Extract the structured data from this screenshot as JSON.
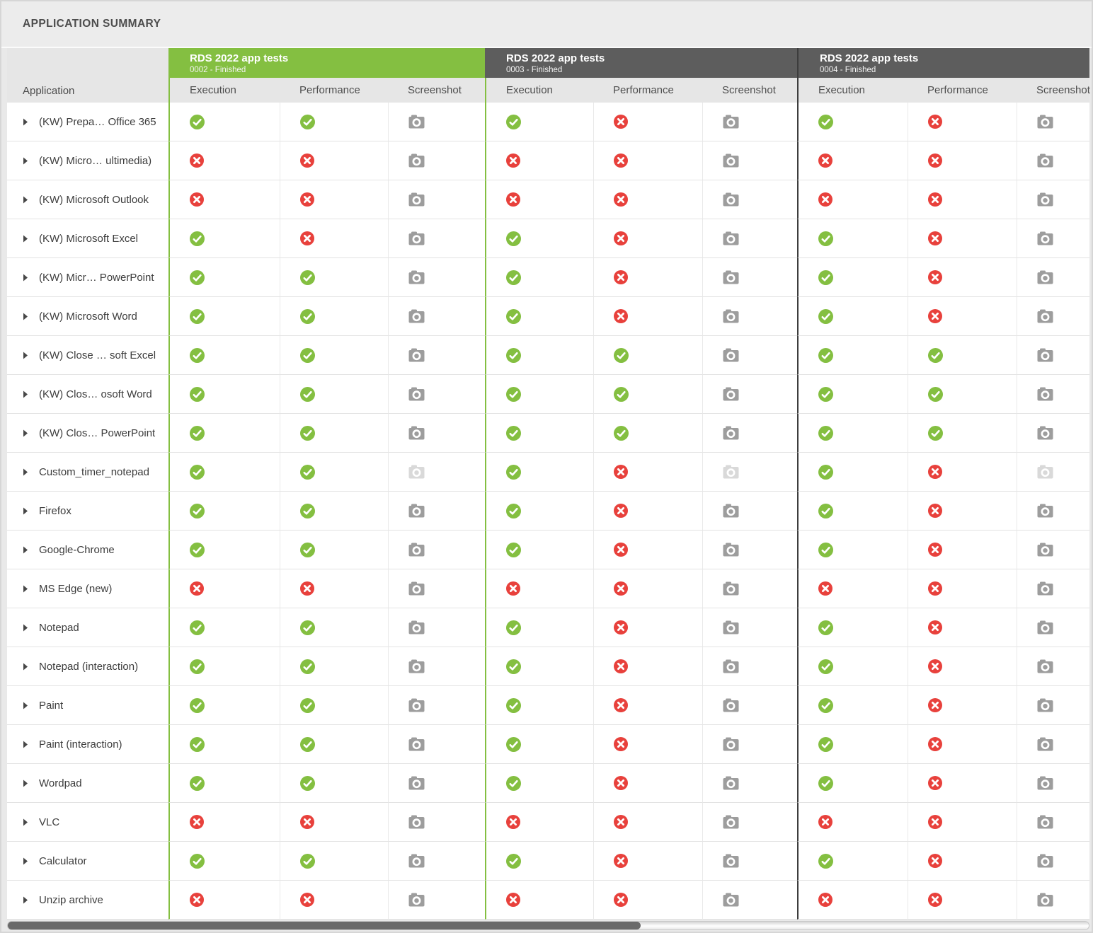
{
  "title": "APPLICATION SUMMARY",
  "colors": {
    "green": "#84bf41",
    "red": "#e8413c",
    "dark_header": "#5d5d5d",
    "camera": "#9d9d9d",
    "camera_disabled": "#d9d9d9"
  },
  "table": {
    "app_column_header": "Application",
    "groups": [
      {
        "title": "RDS 2022 app tests",
        "subtitle": "0002 - Finished",
        "state": "selected"
      },
      {
        "title": "RDS 2022 app tests",
        "subtitle": "0003 - Finished",
        "state": "normal"
      },
      {
        "title": "RDS 2022 app tests",
        "subtitle": "0004 - Finished",
        "state": "normal"
      }
    ],
    "sub_columns": [
      "Execution",
      "Performance",
      "Screenshot"
    ],
    "rows": [
      {
        "app": "(KW) Prepa… Office 365",
        "results": [
          [
            "pass",
            "pass",
            "shot"
          ],
          [
            "pass",
            "fail",
            "shot"
          ],
          [
            "pass",
            "fail",
            "shot"
          ]
        ]
      },
      {
        "app": "(KW) Micro… ultimedia)",
        "results": [
          [
            "fail",
            "fail",
            "shot"
          ],
          [
            "fail",
            "fail",
            "shot"
          ],
          [
            "fail",
            "fail",
            "shot"
          ]
        ]
      },
      {
        "app": "(KW) Microsoft Outlook",
        "results": [
          [
            "fail",
            "fail",
            "shot"
          ],
          [
            "fail",
            "fail",
            "shot"
          ],
          [
            "fail",
            "fail",
            "shot"
          ]
        ]
      },
      {
        "app": "(KW) Microsoft Excel",
        "results": [
          [
            "pass",
            "fail",
            "shot"
          ],
          [
            "pass",
            "fail",
            "shot"
          ],
          [
            "pass",
            "fail",
            "shot"
          ]
        ]
      },
      {
        "app": "(KW) Micr… PowerPoint",
        "results": [
          [
            "pass",
            "pass",
            "shot"
          ],
          [
            "pass",
            "fail",
            "shot"
          ],
          [
            "pass",
            "fail",
            "shot"
          ]
        ]
      },
      {
        "app": "(KW) Microsoft Word",
        "results": [
          [
            "pass",
            "pass",
            "shot"
          ],
          [
            "pass",
            "fail",
            "shot"
          ],
          [
            "pass",
            "fail",
            "shot"
          ]
        ]
      },
      {
        "app": "(KW) Close … soft Excel",
        "results": [
          [
            "pass",
            "pass",
            "shot"
          ],
          [
            "pass",
            "pass",
            "shot"
          ],
          [
            "pass",
            "pass",
            "shot"
          ]
        ]
      },
      {
        "app": "(KW) Clos…  osoft Word",
        "results": [
          [
            "pass",
            "pass",
            "shot"
          ],
          [
            "pass",
            "pass",
            "shot"
          ],
          [
            "pass",
            "pass",
            "shot"
          ]
        ]
      },
      {
        "app": "(KW) Clos… PowerPoint",
        "results": [
          [
            "pass",
            "pass",
            "shot"
          ],
          [
            "pass",
            "pass",
            "shot"
          ],
          [
            "pass",
            "pass",
            "shot"
          ]
        ]
      },
      {
        "app": "Custom_timer_notepad",
        "results": [
          [
            "pass",
            "pass",
            "shot_off"
          ],
          [
            "pass",
            "fail",
            "shot_off"
          ],
          [
            "pass",
            "fail",
            "shot_off"
          ]
        ]
      },
      {
        "app": "Firefox",
        "results": [
          [
            "pass",
            "pass",
            "shot"
          ],
          [
            "pass",
            "fail",
            "shot"
          ],
          [
            "pass",
            "fail",
            "shot"
          ]
        ]
      },
      {
        "app": "Google-Chrome",
        "results": [
          [
            "pass",
            "pass",
            "shot"
          ],
          [
            "pass",
            "fail",
            "shot"
          ],
          [
            "pass",
            "fail",
            "shot"
          ]
        ]
      },
      {
        "app": "MS Edge (new)",
        "results": [
          [
            "fail",
            "fail",
            "shot"
          ],
          [
            "fail",
            "fail",
            "shot"
          ],
          [
            "fail",
            "fail",
            "shot"
          ]
        ]
      },
      {
        "app": "Notepad",
        "results": [
          [
            "pass",
            "pass",
            "shot"
          ],
          [
            "pass",
            "fail",
            "shot"
          ],
          [
            "pass",
            "fail",
            "shot"
          ]
        ]
      },
      {
        "app": "Notepad (interaction)",
        "results": [
          [
            "pass",
            "pass",
            "shot"
          ],
          [
            "pass",
            "fail",
            "shot"
          ],
          [
            "pass",
            "fail",
            "shot"
          ]
        ]
      },
      {
        "app": "Paint",
        "results": [
          [
            "pass",
            "pass",
            "shot"
          ],
          [
            "pass",
            "fail",
            "shot"
          ],
          [
            "pass",
            "fail",
            "shot"
          ]
        ]
      },
      {
        "app": "Paint (interaction)",
        "results": [
          [
            "pass",
            "pass",
            "shot"
          ],
          [
            "pass",
            "fail",
            "shot"
          ],
          [
            "pass",
            "fail",
            "shot"
          ]
        ]
      },
      {
        "app": "Wordpad",
        "results": [
          [
            "pass",
            "pass",
            "shot"
          ],
          [
            "pass",
            "fail",
            "shot"
          ],
          [
            "pass",
            "fail",
            "shot"
          ]
        ]
      },
      {
        "app": "VLC",
        "results": [
          [
            "fail",
            "fail",
            "shot"
          ],
          [
            "fail",
            "fail",
            "shot"
          ],
          [
            "fail",
            "fail",
            "shot"
          ]
        ]
      },
      {
        "app": "Calculator",
        "results": [
          [
            "pass",
            "pass",
            "shot"
          ],
          [
            "pass",
            "fail",
            "shot"
          ],
          [
            "pass",
            "fail",
            "shot"
          ]
        ]
      },
      {
        "app": "Unzip archive",
        "results": [
          [
            "fail",
            "fail",
            "shot"
          ],
          [
            "fail",
            "fail",
            "shot"
          ],
          [
            "fail",
            "fail",
            "shot"
          ]
        ]
      }
    ]
  }
}
